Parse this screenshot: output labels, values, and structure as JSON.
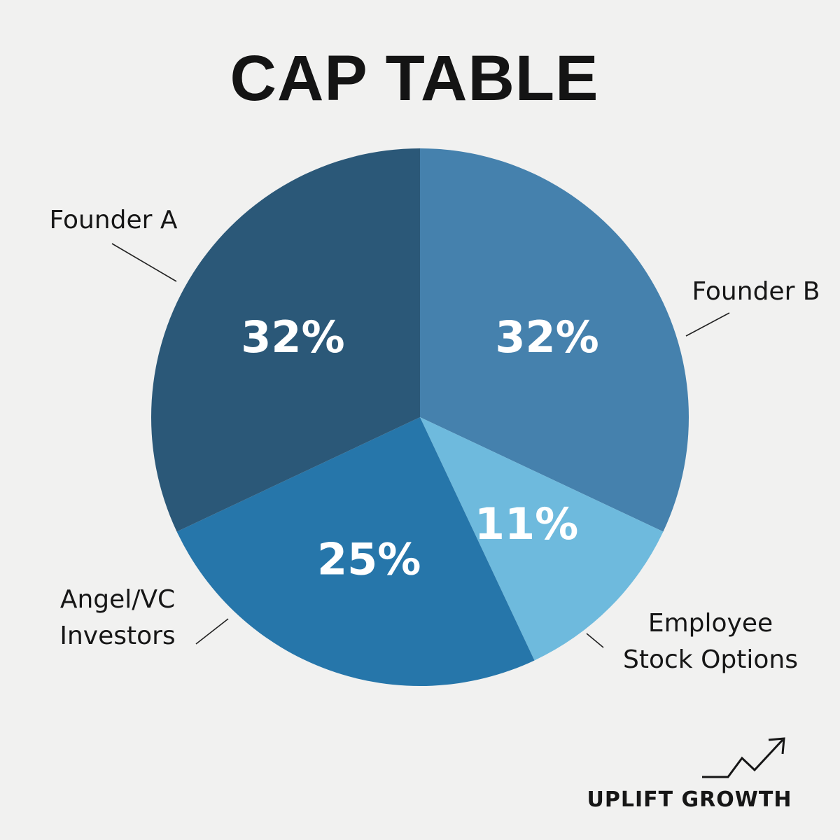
{
  "chart_data": {
    "type": "pie",
    "title": "CAP TABLE",
    "slices": [
      {
        "name": "Founder B",
        "label_lines": [
          "Founder B"
        ],
        "value": 32,
        "display": "32%",
        "color": "#4581ad"
      },
      {
        "name": "Employee Stock Options",
        "label_lines": [
          "Employee",
          "Stock Options"
        ],
        "value": 11,
        "display": "11%",
        "color": "#6ebadd"
      },
      {
        "name": "Angel/VC Investors",
        "label_lines": [
          "Angel/VC",
          "Investors"
        ],
        "value": 25,
        "display": "25%",
        "color": "#2676aa"
      },
      {
        "name": "Founder A",
        "label_lines": [
          "Founder A"
        ],
        "value": 32,
        "display": "32%",
        "color": "#2b5878"
      }
    ],
    "legend": "none"
  },
  "brand": {
    "text": "UPLIFT GROWTH",
    "icon": "trend-up-arrow-icon"
  }
}
